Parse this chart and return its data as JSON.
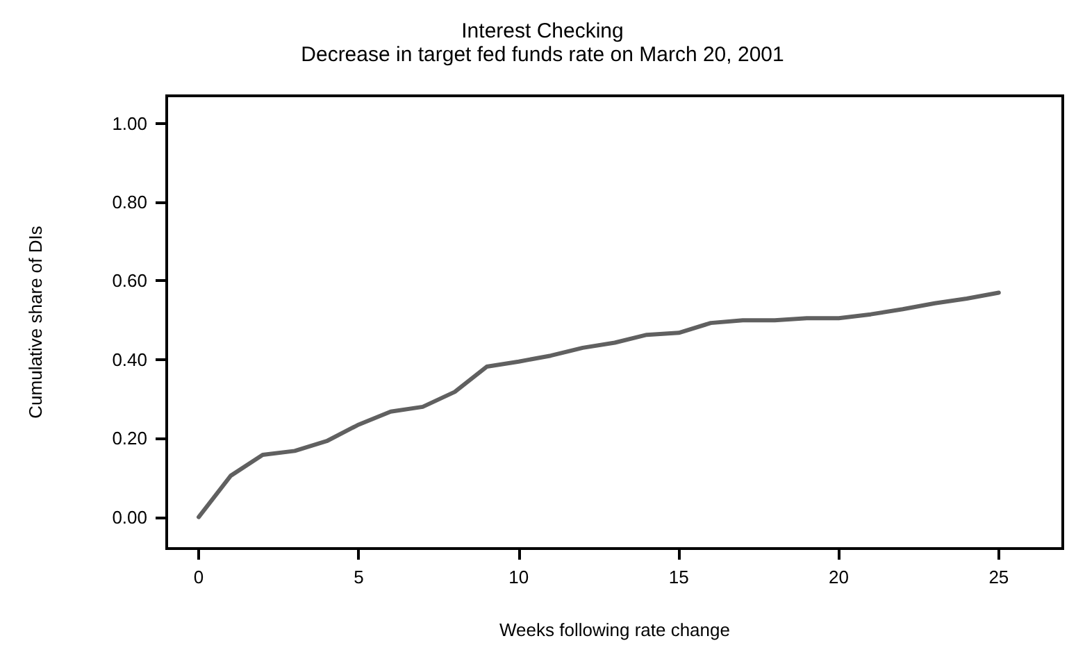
{
  "chart_data": {
    "type": "line",
    "title": "Interest Checking",
    "subtitle": "Decrease in target fed funds rate on March 20, 2001",
    "xlabel": "Weeks following rate change",
    "ylabel": "Cumulative share of DIs",
    "x": [
      0,
      1,
      2,
      3,
      4,
      5,
      6,
      7,
      8,
      9,
      10,
      11,
      12,
      13,
      14,
      15,
      16,
      17,
      18,
      19,
      20,
      21,
      22,
      23,
      24,
      25
    ],
    "series": [
      {
        "color": "#606060",
        "values": [
          0,
          0.105,
          0.158,
          0.168,
          0.193,
          0.235,
          0.268,
          0.28,
          0.318,
          0.382,
          0.395,
          0.41,
          0.43,
          0.443,
          0.463,
          0.468,
          0.493,
          0.5,
          0.5,
          0.505,
          0.505,
          0.515,
          0.528,
          0.543,
          0.555,
          0.57
        ]
      }
    ],
    "xlim": [
      -1,
      27
    ],
    "xticks": [
      0,
      5,
      10,
      15,
      20,
      25
    ],
    "ylim": [
      -0.08,
      1.07
    ],
    "yticks": [
      {
        "value": 0,
        "label": "0.00"
      },
      {
        "value": 0.2,
        "label": "0.20"
      },
      {
        "value": 0.4,
        "label": "0.40"
      },
      {
        "value": 0.6,
        "label": "0.60"
      },
      {
        "value": 0.8,
        "label": "0.80"
      },
      {
        "value": 1,
        "label": "1.00"
      }
    ],
    "grid": false,
    "marker": "none",
    "line_style": "solid"
  }
}
